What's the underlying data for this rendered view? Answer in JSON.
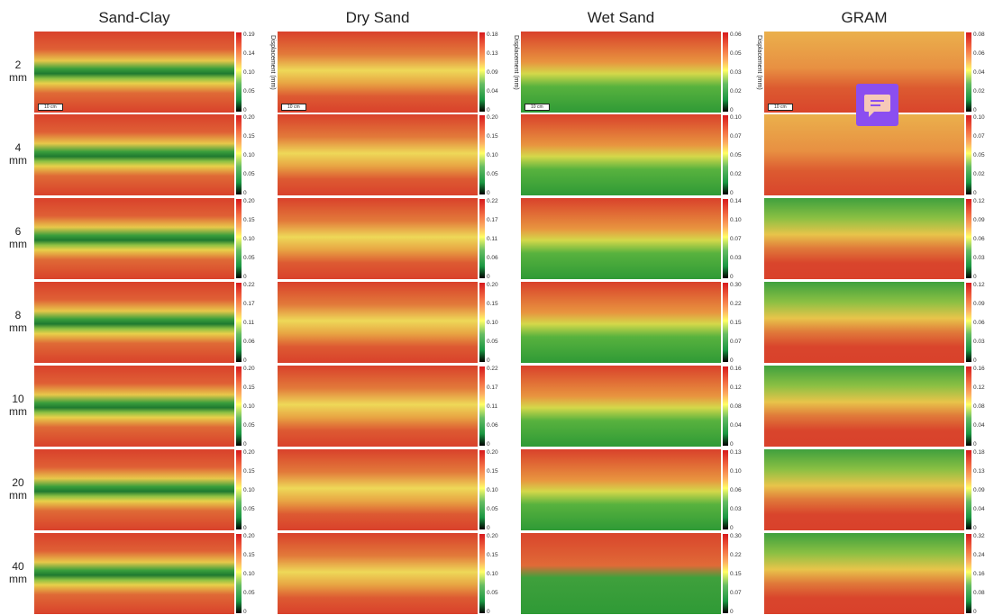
{
  "columns": [
    {
      "title": "Sand-Clay",
      "panels": [
        [
          "0.19",
          "0.14",
          "0.10",
          "0.05",
          "0"
        ],
        [
          "0.20",
          "0.15",
          "0.10",
          "0.05",
          "0"
        ],
        [
          "0.20",
          "0.15",
          "0.10",
          "0.05",
          "0"
        ],
        [
          "0.22",
          "0.17",
          "0.11",
          "0.06",
          "0"
        ],
        [
          "0.20",
          "0.15",
          "0.10",
          "0.05",
          "0"
        ],
        [
          "0.20",
          "0.15",
          "0.10",
          "0.05",
          "0"
        ],
        [
          "0.20",
          "0.15",
          "0.10",
          "0.05",
          "0"
        ]
      ]
    },
    {
      "title": "Dry Sand",
      "panels": [
        [
          "0.18",
          "0.13",
          "0.09",
          "0.04",
          "0"
        ],
        [
          "0.20",
          "0.15",
          "0.10",
          "0.05",
          "0"
        ],
        [
          "0.22",
          "0.17",
          "0.11",
          "0.06",
          "0"
        ],
        [
          "0.20",
          "0.15",
          "0.10",
          "0.05",
          "0"
        ],
        [
          "0.22",
          "0.17",
          "0.11",
          "0.06",
          "0"
        ],
        [
          "0.20",
          "0.15",
          "0.10",
          "0.05",
          "0"
        ],
        [
          "0.20",
          "0.15",
          "0.10",
          "0.05",
          "0"
        ]
      ]
    },
    {
      "title": "Wet Sand",
      "panels": [
        [
          "0.06",
          "0.05",
          "0.03",
          "0.02",
          "0"
        ],
        [
          "0.10",
          "0.07",
          "0.05",
          "0.02",
          "0"
        ],
        [
          "0.14",
          "0.10",
          "0.07",
          "0.03",
          "0"
        ],
        [
          "0.30",
          "0.22",
          "0.15",
          "0.07",
          "0"
        ],
        [
          "0.16",
          "0.12",
          "0.08",
          "0.04",
          "0"
        ],
        [
          "0.13",
          "0.10",
          "0.06",
          "0.03",
          "0"
        ],
        [
          "0.30",
          "0.22",
          "0.15",
          "0.07",
          "0"
        ]
      ]
    },
    {
      "title": "GRAM",
      "panels": [
        [
          "0.08",
          "0.06",
          "0.04",
          "0.02",
          "0"
        ],
        [
          "0.10",
          "0.07",
          "0.05",
          "0.02",
          "0"
        ],
        [
          "0.12",
          "0.09",
          "0.06",
          "0.03",
          "0"
        ],
        [
          "0.12",
          "0.09",
          "0.06",
          "0.03",
          "0"
        ],
        [
          "0.16",
          "0.12",
          "0.08",
          "0.04",
          "0"
        ],
        [
          "0.18",
          "0.13",
          "0.09",
          "0.04",
          "0"
        ],
        [
          "0.32",
          "0.24",
          "0.16",
          "0.08",
          "0"
        ]
      ]
    }
  ],
  "rows": [
    {
      "value": "2",
      "unit": "mm"
    },
    {
      "value": "4",
      "unit": "mm"
    },
    {
      "value": "6",
      "unit": "mm"
    },
    {
      "value": "8",
      "unit": "mm"
    },
    {
      "value": "10",
      "unit": "mm"
    },
    {
      "value": "20",
      "unit": "mm"
    },
    {
      "value": "40",
      "unit": "mm"
    }
  ],
  "colorbar_label": "Displacement (mm)",
  "scale_bar_label": "10 cm"
}
